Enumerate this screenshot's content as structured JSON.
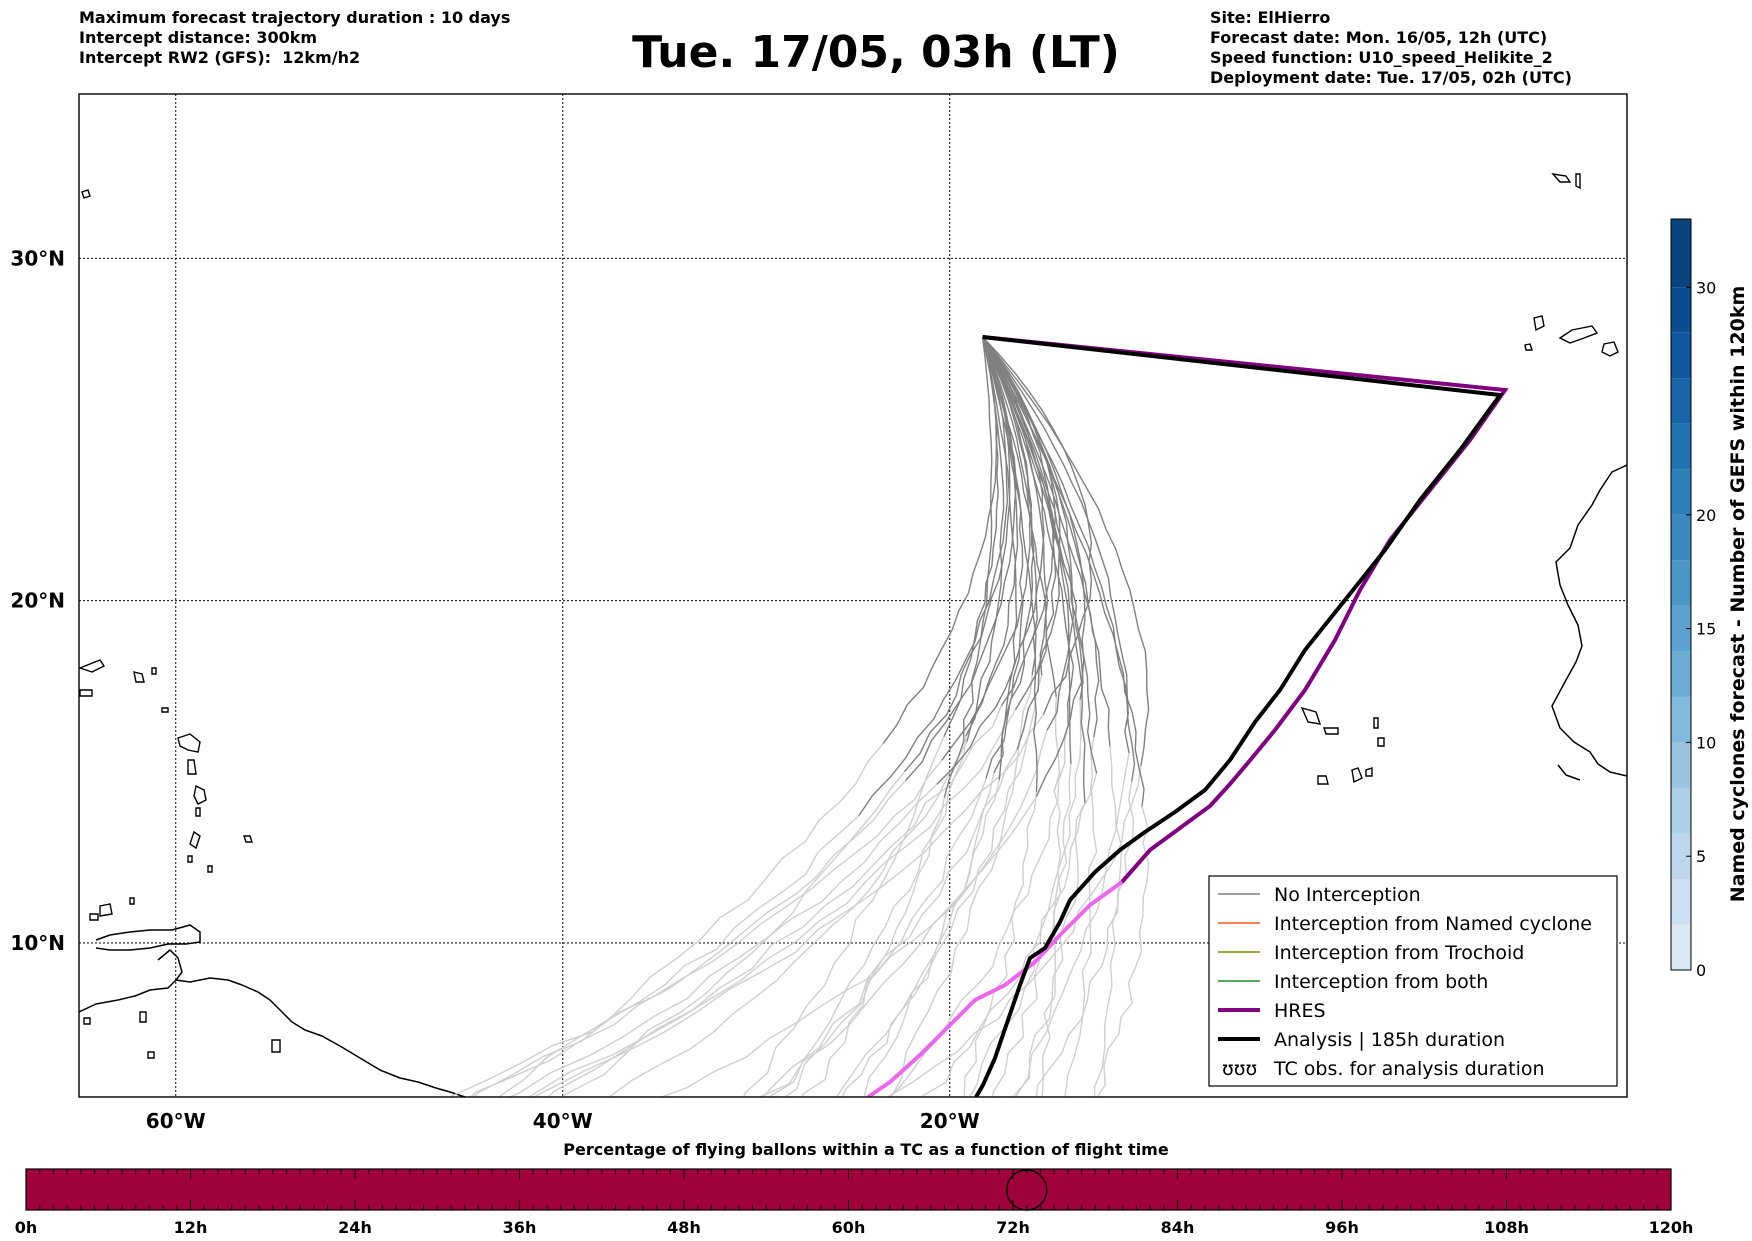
{
  "header": {
    "left_info": [
      "Maximum forecast trajectory duration : 10 days",
      "Intercept distance: 300km",
      "Intercept RW2 (GFS):  12km/h2"
    ],
    "title": "Tue. 17/05, 03h (LT)",
    "right_info": [
      "Site: ElHierro",
      "Forecast date: Mon. 16/05, 12h (UTC)",
      "Speed function: U10_speed_Helikite_2",
      "Deployment date: Tue. 17/05, 02h (UTC)"
    ]
  },
  "map": {
    "lon_range": [
      -65,
      15
    ],
    "lat_range": [
      5.5,
      34.8
    ],
    "lon_ticks": [
      {
        "value": -60,
        "label": "60°W"
      },
      {
        "value": -40,
        "label": "40°W"
      },
      {
        "value": -20,
        "label": "20°W"
      }
    ],
    "lat_ticks": [
      {
        "value": 30,
        "label": "30°N"
      },
      {
        "value": 20,
        "label": "20°N"
      },
      {
        "value": 10,
        "label": "10°N"
      }
    ],
    "site": {
      "name": "ElHierro",
      "lon": -18.3,
      "lat": 27.7
    },
    "colors": {
      "no_interception": "#808080",
      "named_cyclone": "#ff5a1e",
      "trochoid": "#808000",
      "both": "#228b22",
      "hres": "#800080",
      "hres_late": "#ee66ee",
      "analysis": "#000000",
      "late_trajectory": "#cfcfcf"
    }
  },
  "legend": {
    "items": [
      {
        "key": "no_interception",
        "label": "No Interception"
      },
      {
        "key": "named_cyclone",
        "label": "Interception from Named cyclone"
      },
      {
        "key": "trochoid",
        "label": "Interception from Trochoid"
      },
      {
        "key": "both",
        "label": "Interception from both"
      },
      {
        "key": "hres",
        "label": "HRES"
      },
      {
        "key": "analysis",
        "label": "Analysis | 185h duration"
      },
      {
        "key": "tc_obs",
        "label": "TC obs. for analysis duration"
      }
    ],
    "tc_obs_symbol": "ʊʊʊ"
  },
  "colorbar": {
    "label": "Named cyclones forecast - Number of GEFS within 120km",
    "range": [
      0,
      33
    ],
    "ticks": [
      0,
      5,
      10,
      15,
      20,
      30
    ],
    "boundaries": [
      0,
      2,
      4,
      6,
      8,
      10,
      12,
      14,
      16,
      18,
      20,
      22,
      24,
      26,
      28,
      30,
      33
    ],
    "colors": [
      "#dbe8f5",
      "#cddff1",
      "#bed6ec",
      "#adcfe5",
      "#98c4e0",
      "#82badb",
      "#6aaed6",
      "#5aa2cf",
      "#4a96c7",
      "#3b8bc2",
      "#2d7fb8",
      "#2272b1",
      "#1865aa",
      "#0f589e",
      "#0b4e90",
      "#08457f"
    ]
  },
  "timebar": {
    "title": "Percentage of flying ballons within a TC as a function of flight time",
    "labels": [
      "0h",
      "12h",
      "24h",
      "36h",
      "48h",
      "60h",
      "72h",
      "84h",
      "96h",
      "108h",
      "120h"
    ],
    "max_hours": 120,
    "current_hours": 73,
    "bar_color": "#a0003c"
  }
}
